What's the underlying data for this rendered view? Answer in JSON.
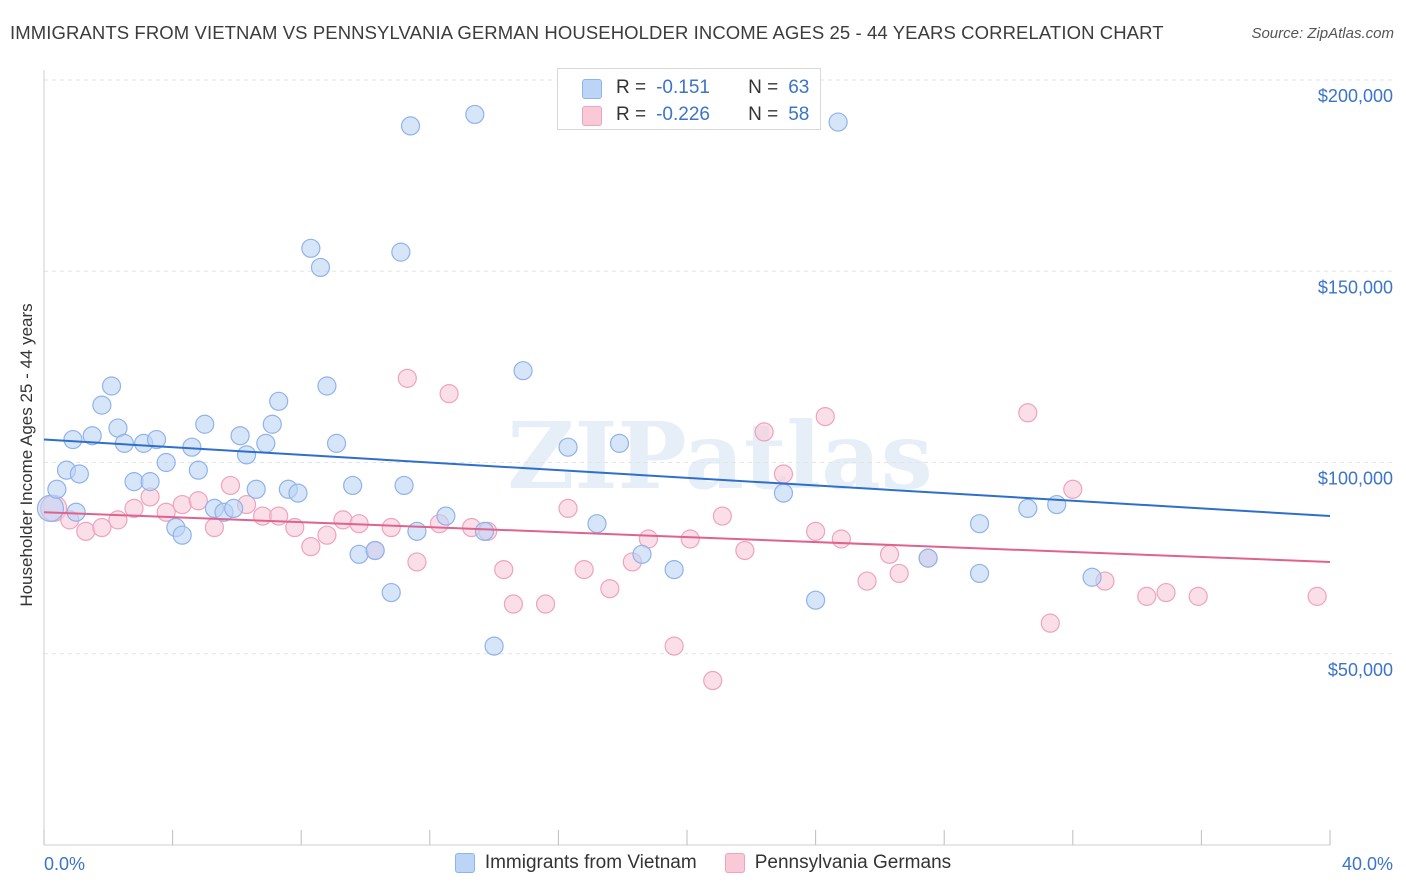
{
  "title": "IMMIGRANTS FROM VIETNAM VS PENNSYLVANIA GERMAN HOUSEHOLDER INCOME AGES 25 - 44 YEARS CORRELATION CHART",
  "source": "Source: ZipAtlas.com",
  "watermark": "ZIPatlas",
  "colors": {
    "blue_fill": "#bcd4f5",
    "blue_stroke": "#8fb3ea",
    "blue_line": "#2f6fcc",
    "pink_fill": "#f9c9d8",
    "pink_stroke": "#efa3bc",
    "pink_line": "#e0628e",
    "tick_label": "#3b74c9",
    "grid": "#e4e4e4"
  },
  "stats": {
    "blue": {
      "r_label": "R =",
      "r_value": "-0.151",
      "n_label": "N =",
      "n_value": "63"
    },
    "pink": {
      "r_label": "R =",
      "r_value": "-0.226",
      "n_label": "N =",
      "n_value": "58"
    }
  },
  "legend": {
    "blue": "Immigrants from Vietnam",
    "pink": "Pennsylvania Germans"
  },
  "chart_data": {
    "type": "scatter",
    "title": "IMMIGRANTS FROM VIETNAM VS PENNSYLVANIA GERMAN HOUSEHOLDER INCOME AGES 25 - 44 YEARS CORRELATION CHART",
    "xlabel": "",
    "ylabel": "Householder Income Ages 25 - 44 years",
    "xlim": [
      0,
      40
    ],
    "ylim": [
      0,
      210000
    ],
    "x_tick_labels": [
      "0.0%",
      "40.0%"
    ],
    "y_ticks": [
      50000,
      100000,
      150000,
      200000
    ],
    "y_tick_labels": [
      "$50,000",
      "$100,000",
      "$150,000",
      "$200,000"
    ],
    "grid": true,
    "legend_position": "bottom-center",
    "series": [
      {
        "name": "Immigrants from Vietnam",
        "color": "blue",
        "trend": {
          "x": [
            0,
            40
          ],
          "y": [
            106000,
            86000
          ]
        },
        "points": [
          [
            0.2,
            88000
          ],
          [
            0.4,
            93000
          ],
          [
            0.7,
            98000
          ],
          [
            1.1,
            97000
          ],
          [
            0.9,
            106000
          ],
          [
            1.5,
            107000
          ],
          [
            1.8,
            115000
          ],
          [
            2.1,
            120000
          ],
          [
            2.3,
            109000
          ],
          [
            2.5,
            105000
          ],
          [
            2.8,
            95000
          ],
          [
            3.1,
            105000
          ],
          [
            3.3,
            95000
          ],
          [
            3.5,
            106000
          ],
          [
            3.8,
            100000
          ],
          [
            4.1,
            83000
          ],
          [
            4.3,
            81000
          ],
          [
            4.6,
            104000
          ],
          [
            4.8,
            98000
          ],
          [
            5.0,
            110000
          ],
          [
            5.3,
            88000
          ],
          [
            5.6,
            87000
          ],
          [
            5.9,
            88000
          ],
          [
            6.1,
            107000
          ],
          [
            6.3,
            102000
          ],
          [
            6.6,
            93000
          ],
          [
            6.9,
            105000
          ],
          [
            7.1,
            110000
          ],
          [
            7.3,
            116000
          ],
          [
            7.6,
            93000
          ],
          [
            7.9,
            92000
          ],
          [
            8.3,
            156000
          ],
          [
            8.6,
            151000
          ],
          [
            8.8,
            120000
          ],
          [
            9.1,
            105000
          ],
          [
            9.6,
            94000
          ],
          [
            9.8,
            76000
          ],
          [
            10.3,
            77000
          ],
          [
            10.8,
            66000
          ],
          [
            11.2,
            94000
          ],
          [
            11.6,
            82000
          ],
          [
            11.4,
            188000
          ],
          [
            11.1,
            155000
          ],
          [
            12.5,
            86000
          ],
          [
            13.4,
            191000
          ],
          [
            13.7,
            82000
          ],
          [
            14.0,
            52000
          ],
          [
            14.9,
            124000
          ],
          [
            16.3,
            104000
          ],
          [
            17.2,
            84000
          ],
          [
            17.9,
            105000
          ],
          [
            18.6,
            76000
          ],
          [
            19.6,
            72000
          ],
          [
            23.0,
            92000
          ],
          [
            24.0,
            64000
          ],
          [
            24.7,
            189000
          ],
          [
            27.5,
            75000
          ],
          [
            29.1,
            84000
          ],
          [
            30.6,
            88000
          ],
          [
            31.5,
            89000
          ],
          [
            29.1,
            71000
          ],
          [
            32.6,
            70000
          ],
          [
            1.0,
            87000
          ]
        ]
      },
      {
        "name": "Pennsylvania Germans",
        "color": "pink",
        "trend": {
          "x": [
            0,
            40
          ],
          "y": [
            87000,
            74000
          ]
        },
        "points": [
          [
            0.3,
            88000
          ],
          [
            0.8,
            85000
          ],
          [
            1.3,
            82000
          ],
          [
            1.8,
            83000
          ],
          [
            2.3,
            85000
          ],
          [
            2.8,
            88000
          ],
          [
            3.3,
            91000
          ],
          [
            3.8,
            87000
          ],
          [
            4.3,
            89000
          ],
          [
            4.8,
            90000
          ],
          [
            5.3,
            83000
          ],
          [
            5.8,
            94000
          ],
          [
            6.3,
            89000
          ],
          [
            6.8,
            86000
          ],
          [
            7.3,
            86000
          ],
          [
            7.8,
            83000
          ],
          [
            8.3,
            78000
          ],
          [
            8.8,
            81000
          ],
          [
            9.3,
            85000
          ],
          [
            9.8,
            84000
          ],
          [
            10.3,
            77000
          ],
          [
            10.8,
            83000
          ],
          [
            11.3,
            122000
          ],
          [
            11.6,
            74000
          ],
          [
            12.3,
            84000
          ],
          [
            12.6,
            118000
          ],
          [
            13.3,
            83000
          ],
          [
            13.8,
            82000
          ],
          [
            14.3,
            72000
          ],
          [
            14.6,
            63000
          ],
          [
            15.6,
            63000
          ],
          [
            16.3,
            88000
          ],
          [
            16.8,
            72000
          ],
          [
            17.6,
            67000
          ],
          [
            18.3,
            74000
          ],
          [
            18.8,
            80000
          ],
          [
            19.6,
            52000
          ],
          [
            20.1,
            80000
          ],
          [
            20.8,
            43000
          ],
          [
            21.1,
            86000
          ],
          [
            21.8,
            77000
          ],
          [
            22.4,
            108000
          ],
          [
            23.0,
            97000
          ],
          [
            24.0,
            82000
          ],
          [
            24.3,
            112000
          ],
          [
            24.8,
            80000
          ],
          [
            25.6,
            69000
          ],
          [
            26.3,
            76000
          ],
          [
            26.6,
            71000
          ],
          [
            27.5,
            75000
          ],
          [
            30.6,
            113000
          ],
          [
            31.3,
            58000
          ],
          [
            32.0,
            93000
          ],
          [
            33.0,
            69000
          ],
          [
            34.3,
            65000
          ],
          [
            34.9,
            66000
          ],
          [
            35.9,
            65000
          ],
          [
            39.6,
            65000
          ]
        ]
      }
    ]
  }
}
